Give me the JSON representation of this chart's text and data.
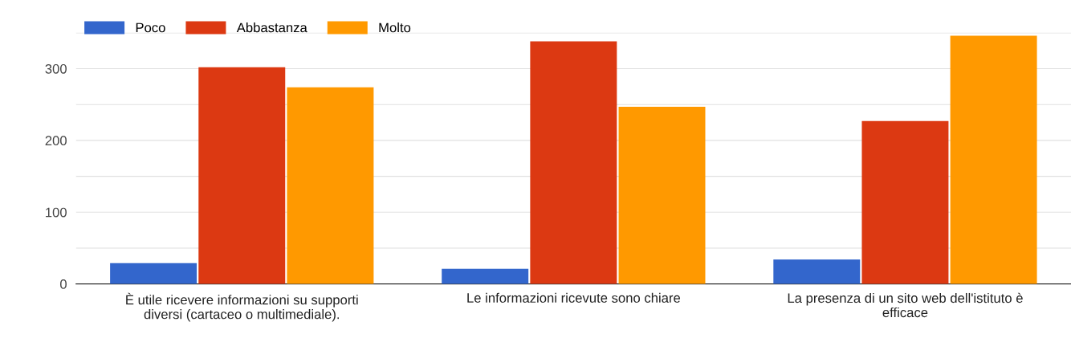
{
  "chart_data": {
    "type": "bar",
    "categories": [
      "È utile ricevere informazioni su supporti\ndiversi (cartaceo o multimediale).",
      "Le informazioni ricevute sono chiare",
      "La presenza di un sito web dell'istituto è\nefficace"
    ],
    "series": [
      {
        "name": "Poco",
        "color": "#3366cc",
        "values": [
          29,
          21,
          34
        ]
      },
      {
        "name": "Abbastanza",
        "color": "#dc3912",
        "values": [
          302,
          338,
          227
        ]
      },
      {
        "name": "Molto",
        "color": "#ff9900",
        "values": [
          274,
          247,
          346
        ]
      }
    ],
    "ylim": [
      0,
      350
    ],
    "yticks": [
      0,
      {
        "value": 50,
        "label": null
      },
      100,
      {
        "value": 150,
        "label": null
      },
      200,
      {
        "value": 250,
        "label": null
      },
      300,
      {
        "value": 350,
        "label": null
      }
    ],
    "grid": "y",
    "legend": "top left"
  }
}
